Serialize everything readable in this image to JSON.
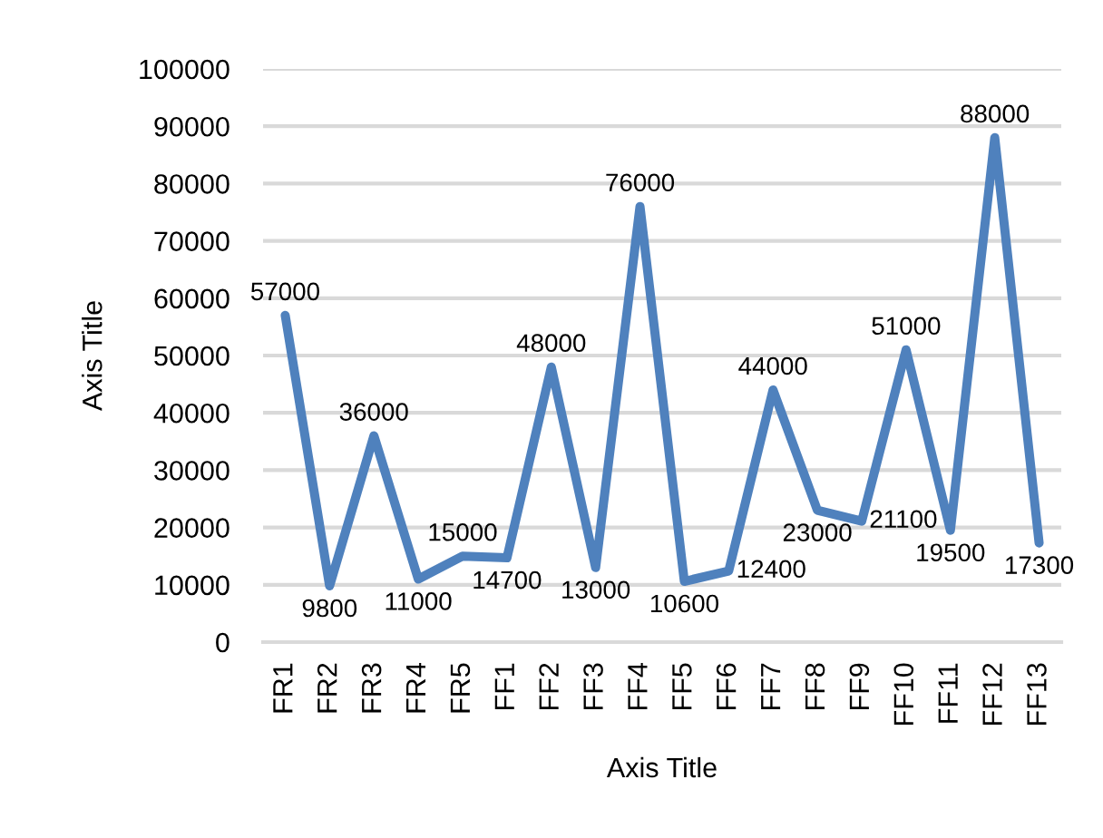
{
  "chart_data": {
    "type": "line",
    "xlabel": "Axis Title",
    "ylabel": "Axis Title",
    "categories": [
      "FR1",
      "FR2",
      "FR3",
      "FR4",
      "FR5",
      "FF1",
      "FF2",
      "FF3",
      "FF4",
      "FF5",
      "FF6",
      "FF7",
      "FF8",
      "FF9",
      "FF10",
      "FF11",
      "FF12",
      "FF13"
    ],
    "series": [
      {
        "color": "#4f81bd",
        "values": [
          57000,
          9800,
          36000,
          11000,
          15000,
          14700,
          48000,
          13000,
          76000,
          10600,
          12400,
          44000,
          23000,
          21100,
          51000,
          19500,
          88000,
          17300
        ]
      }
    ],
    "ylim": [
      0,
      100000
    ],
    "yticks": [
      0,
      10000,
      20000,
      30000,
      40000,
      50000,
      60000,
      70000,
      80000,
      90000,
      100000
    ],
    "grid": "y",
    "data_labels": true,
    "marker": "none",
    "line_style": "solid"
  }
}
